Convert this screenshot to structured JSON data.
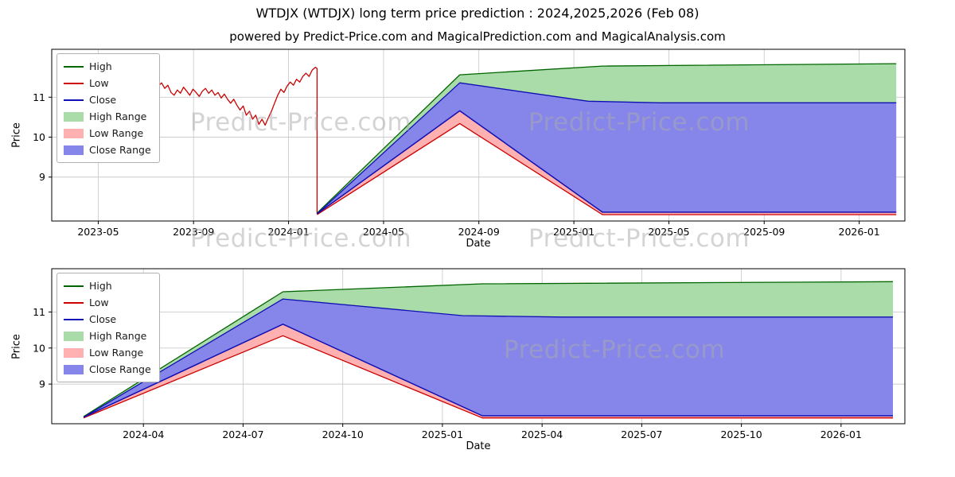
{
  "watermark": {
    "text": "Predict-Price.com"
  },
  "colors": {
    "high_line": "#006400",
    "low_line": "#cc0000",
    "close_line": "#0f0fb4",
    "high_band": "#aadcaa",
    "low_band": "#ffb0b0",
    "close_band": "#8686ea",
    "grid": "#cccccc",
    "axis": "#000000",
    "watermark": "#ababab"
  },
  "legend": {
    "position": "upper-left",
    "items": [
      {
        "label": "High",
        "swatch": "line",
        "color": "high_line"
      },
      {
        "label": "Low",
        "swatch": "line",
        "color": "low_line"
      },
      {
        "label": "Close",
        "swatch": "line",
        "color": "close_line"
      },
      {
        "label": "High Range",
        "swatch": "patch",
        "color": "high_band"
      },
      {
        "label": "Low Range",
        "swatch": "patch",
        "color": "low_band"
      },
      {
        "label": "Close Range",
        "swatch": "patch",
        "color": "close_band"
      }
    ]
  },
  "chart_data": {
    "type": "line",
    "title": "WTDJX (WTDJX) long term price prediction : 2024,2025,2026 (Feb 08)",
    "subtitle": "powered by Predict-Price.com and MagicalPrediction.com and MagicalAnalysis.com",
    "grid": true,
    "series": {
      "history": [
        [
          2023.5,
          11.42
        ],
        [
          2023.511,
          11.35
        ],
        [
          2023.522,
          11.48
        ],
        [
          2023.533,
          11.4
        ],
        [
          2023.544,
          11.28
        ],
        [
          2023.555,
          11.36
        ],
        [
          2023.566,
          11.22
        ],
        [
          2023.577,
          11.3
        ],
        [
          2023.588,
          11.12
        ],
        [
          2023.599,
          11.05
        ],
        [
          2023.61,
          11.18
        ],
        [
          2023.621,
          11.1
        ],
        [
          2023.632,
          11.25
        ],
        [
          2023.643,
          11.15
        ],
        [
          2023.654,
          11.05
        ],
        [
          2023.665,
          11.2
        ],
        [
          2023.676,
          11.12
        ],
        [
          2023.687,
          11.02
        ],
        [
          2023.698,
          11.15
        ],
        [
          2023.709,
          11.22
        ],
        [
          2023.72,
          11.1
        ],
        [
          2023.731,
          11.18
        ],
        [
          2023.742,
          11.05
        ],
        [
          2023.753,
          11.12
        ],
        [
          2023.764,
          10.98
        ],
        [
          2023.775,
          11.08
        ],
        [
          2023.786,
          10.95
        ],
        [
          2023.797,
          10.85
        ],
        [
          2023.808,
          10.95
        ],
        [
          2023.819,
          10.8
        ],
        [
          2023.83,
          10.68
        ],
        [
          2023.841,
          10.78
        ],
        [
          2023.852,
          10.55
        ],
        [
          2023.863,
          10.65
        ],
        [
          2023.874,
          10.45
        ],
        [
          2023.885,
          10.55
        ],
        [
          2023.896,
          10.32
        ],
        [
          2023.907,
          10.45
        ],
        [
          2023.918,
          10.3
        ],
        [
          2023.929,
          10.48
        ],
        [
          2023.94,
          10.65
        ],
        [
          2023.951,
          10.85
        ],
        [
          2023.962,
          11.05
        ],
        [
          2023.973,
          11.2
        ],
        [
          2023.984,
          11.12
        ],
        [
          2023.995,
          11.28
        ],
        [
          2024.006,
          11.38
        ],
        [
          2024.017,
          11.3
        ],
        [
          2024.028,
          11.45
        ],
        [
          2024.039,
          11.38
        ],
        [
          2024.05,
          11.52
        ],
        [
          2024.061,
          11.6
        ],
        [
          2024.072,
          11.52
        ],
        [
          2024.083,
          11.68
        ],
        [
          2024.094,
          11.75
        ],
        [
          2024.1,
          11.72
        ],
        [
          2024.1,
          8.08
        ]
      ],
      "low": [
        [
          2024.1,
          8.06
        ],
        [
          2024.6,
          10.34
        ],
        [
          2025.1,
          8.06
        ],
        [
          2026.13,
          8.06
        ]
      ],
      "close": [
        [
          2024.1,
          8.08
        ],
        [
          2024.6,
          10.66
        ],
        [
          2025.1,
          8.12
        ],
        [
          2026.13,
          8.12
        ]
      ],
      "close_top": [
        [
          2024.1,
          8.08
        ],
        [
          2024.6,
          11.36
        ],
        [
          2025.05,
          10.9
        ],
        [
          2025.3,
          10.86
        ],
        [
          2026.13,
          10.86
        ]
      ],
      "high_top": [
        [
          2024.1,
          8.1
        ],
        [
          2024.6,
          11.56
        ],
        [
          2025.1,
          11.78
        ],
        [
          2026.13,
          11.84
        ]
      ]
    },
    "charts": [
      {
        "name": "history-and-forecast",
        "xlabel": "Date",
        "ylabel": "Price",
        "xlim": [
          2023.17,
          2026.16
        ],
        "ylim": [
          7.9,
          12.2
        ],
        "y_ticks": [
          9,
          10,
          11
        ],
        "x_ticks": [
          {
            "v": 2023.333,
            "label": "2023-05"
          },
          {
            "v": 2023.667,
            "label": "2023-09"
          },
          {
            "v": 2024.0,
            "label": "2024-01"
          },
          {
            "v": 2024.333,
            "label": "2024-05"
          },
          {
            "v": 2024.667,
            "label": "2024-09"
          },
          {
            "v": 2025.0,
            "label": "2025-01"
          },
          {
            "v": 2025.333,
            "label": "2025-05"
          },
          {
            "v": 2025.667,
            "label": "2025-09"
          },
          {
            "v": 2026.0,
            "label": "2026-01"
          }
        ],
        "plot": {
          "l": 65,
          "t": 62,
          "r": 1137,
          "b": 278
        },
        "bands": [
          {
            "name": "high-range-band",
            "upper": "high_top",
            "lower": "close_top",
            "color": "high_band"
          },
          {
            "name": "low-range-band",
            "upper": "close",
            "lower": "low",
            "color": "low_band"
          },
          {
            "name": "close-range-band",
            "upper": "close_top",
            "lower": "close",
            "color": "close_band"
          }
        ],
        "lines": [
          {
            "name": "history-price-line",
            "series": "history",
            "color": "low_line",
            "width": 1.3
          },
          {
            "name": "high-forecast-line",
            "series": "high_top",
            "color": "high_line",
            "width": 1.3
          },
          {
            "name": "close-range-upper-edge-line",
            "series": "close_top",
            "color": "close_line",
            "width": 1.3
          },
          {
            "name": "low-forecast-line",
            "series": "low",
            "color": "low_line",
            "width": 1.3
          },
          {
            "name": "close-forecast-line",
            "series": "close",
            "color": "close_line",
            "width": 1.5
          }
        ]
      },
      {
        "name": "forecast-detail",
        "xlabel": "Date",
        "ylabel": "Price",
        "xlim": [
          2024.02,
          2026.16
        ],
        "ylim": [
          7.9,
          12.2
        ],
        "y_ticks": [
          9,
          10,
          11
        ],
        "x_ticks": [
          {
            "v": 2024.25,
            "label": "2024-04"
          },
          {
            "v": 2024.5,
            "label": "2024-07"
          },
          {
            "v": 2024.75,
            "label": "2024-10"
          },
          {
            "v": 2025.0,
            "label": "2025-01"
          },
          {
            "v": 2025.25,
            "label": "2025-04"
          },
          {
            "v": 2025.5,
            "label": "2025-07"
          },
          {
            "v": 2025.75,
            "label": "2025-10"
          },
          {
            "v": 2026.0,
            "label": "2026-01"
          }
        ],
        "plot": {
          "l": 65,
          "t": 338,
          "r": 1137,
          "b": 533
        },
        "bands": [
          {
            "name": "high-range-band",
            "upper": "high_top",
            "lower": "close_top",
            "color": "high_band"
          },
          {
            "name": "low-range-band",
            "upper": "close",
            "lower": "low",
            "color": "low_band"
          },
          {
            "name": "close-range-band",
            "upper": "close_top",
            "lower": "close",
            "color": "close_band"
          }
        ],
        "lines": [
          {
            "name": "high-forecast-line",
            "series": "high_top",
            "color": "high_line",
            "width": 1.3
          },
          {
            "name": "close-range-upper-edge-line",
            "series": "close_top",
            "color": "close_line",
            "width": 1.3
          },
          {
            "name": "low-forecast-line",
            "series": "low",
            "color": "low_line",
            "width": 1.3
          },
          {
            "name": "close-forecast-line",
            "series": "close",
            "color": "close_line",
            "width": 1.5
          }
        ]
      }
    ]
  }
}
